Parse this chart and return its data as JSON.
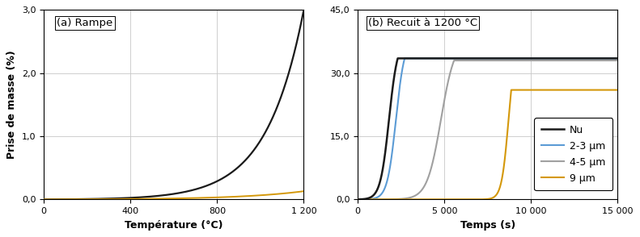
{
  "title_a": "(a) Rampe",
  "title_b": "(b) Recuit à 1200 °C",
  "xlabel_a": "Température (°C)",
  "xlabel_b": "Temps (s)",
  "ylabel": "Prise de masse (%)",
  "xlim_a": [
    0,
    1200
  ],
  "ylim_a": [
    0.0,
    3.0
  ],
  "xlim_b": [
    0,
    15000
  ],
  "ylim_b": [
    0.0,
    45.0
  ],
  "xticks_a": [
    0,
    400,
    800,
    1200
  ],
  "xticks_a_labels": [
    "0",
    "400",
    "800",
    "1 200"
  ],
  "yticks_a": [
    0.0,
    1.0,
    2.0,
    3.0
  ],
  "yticks_a_labels": [
    "0,0",
    "1,0",
    "2,0",
    "3,0"
  ],
  "xticks_b": [
    0,
    5000,
    10000,
    15000
  ],
  "xticks_b_labels": [
    "0",
    "5 000",
    "10 000",
    "15 000"
  ],
  "yticks_b": [
    0.0,
    15.0,
    30.0,
    45.0
  ],
  "yticks_b_labels": [
    "0,0",
    "15,0",
    "30,0",
    "45,0"
  ],
  "colors": {
    "nu": "#1a1a1a",
    "2-3um": "#5b9bd5",
    "4-5um": "#a0a0a0",
    "9um": "#d4980a"
  },
  "legend_labels": [
    "Nu",
    "2-3 μm",
    "4-5 μm",
    "9 μm"
  ],
  "background_color": "#ffffff",
  "grid_color": "#c8c8c8"
}
